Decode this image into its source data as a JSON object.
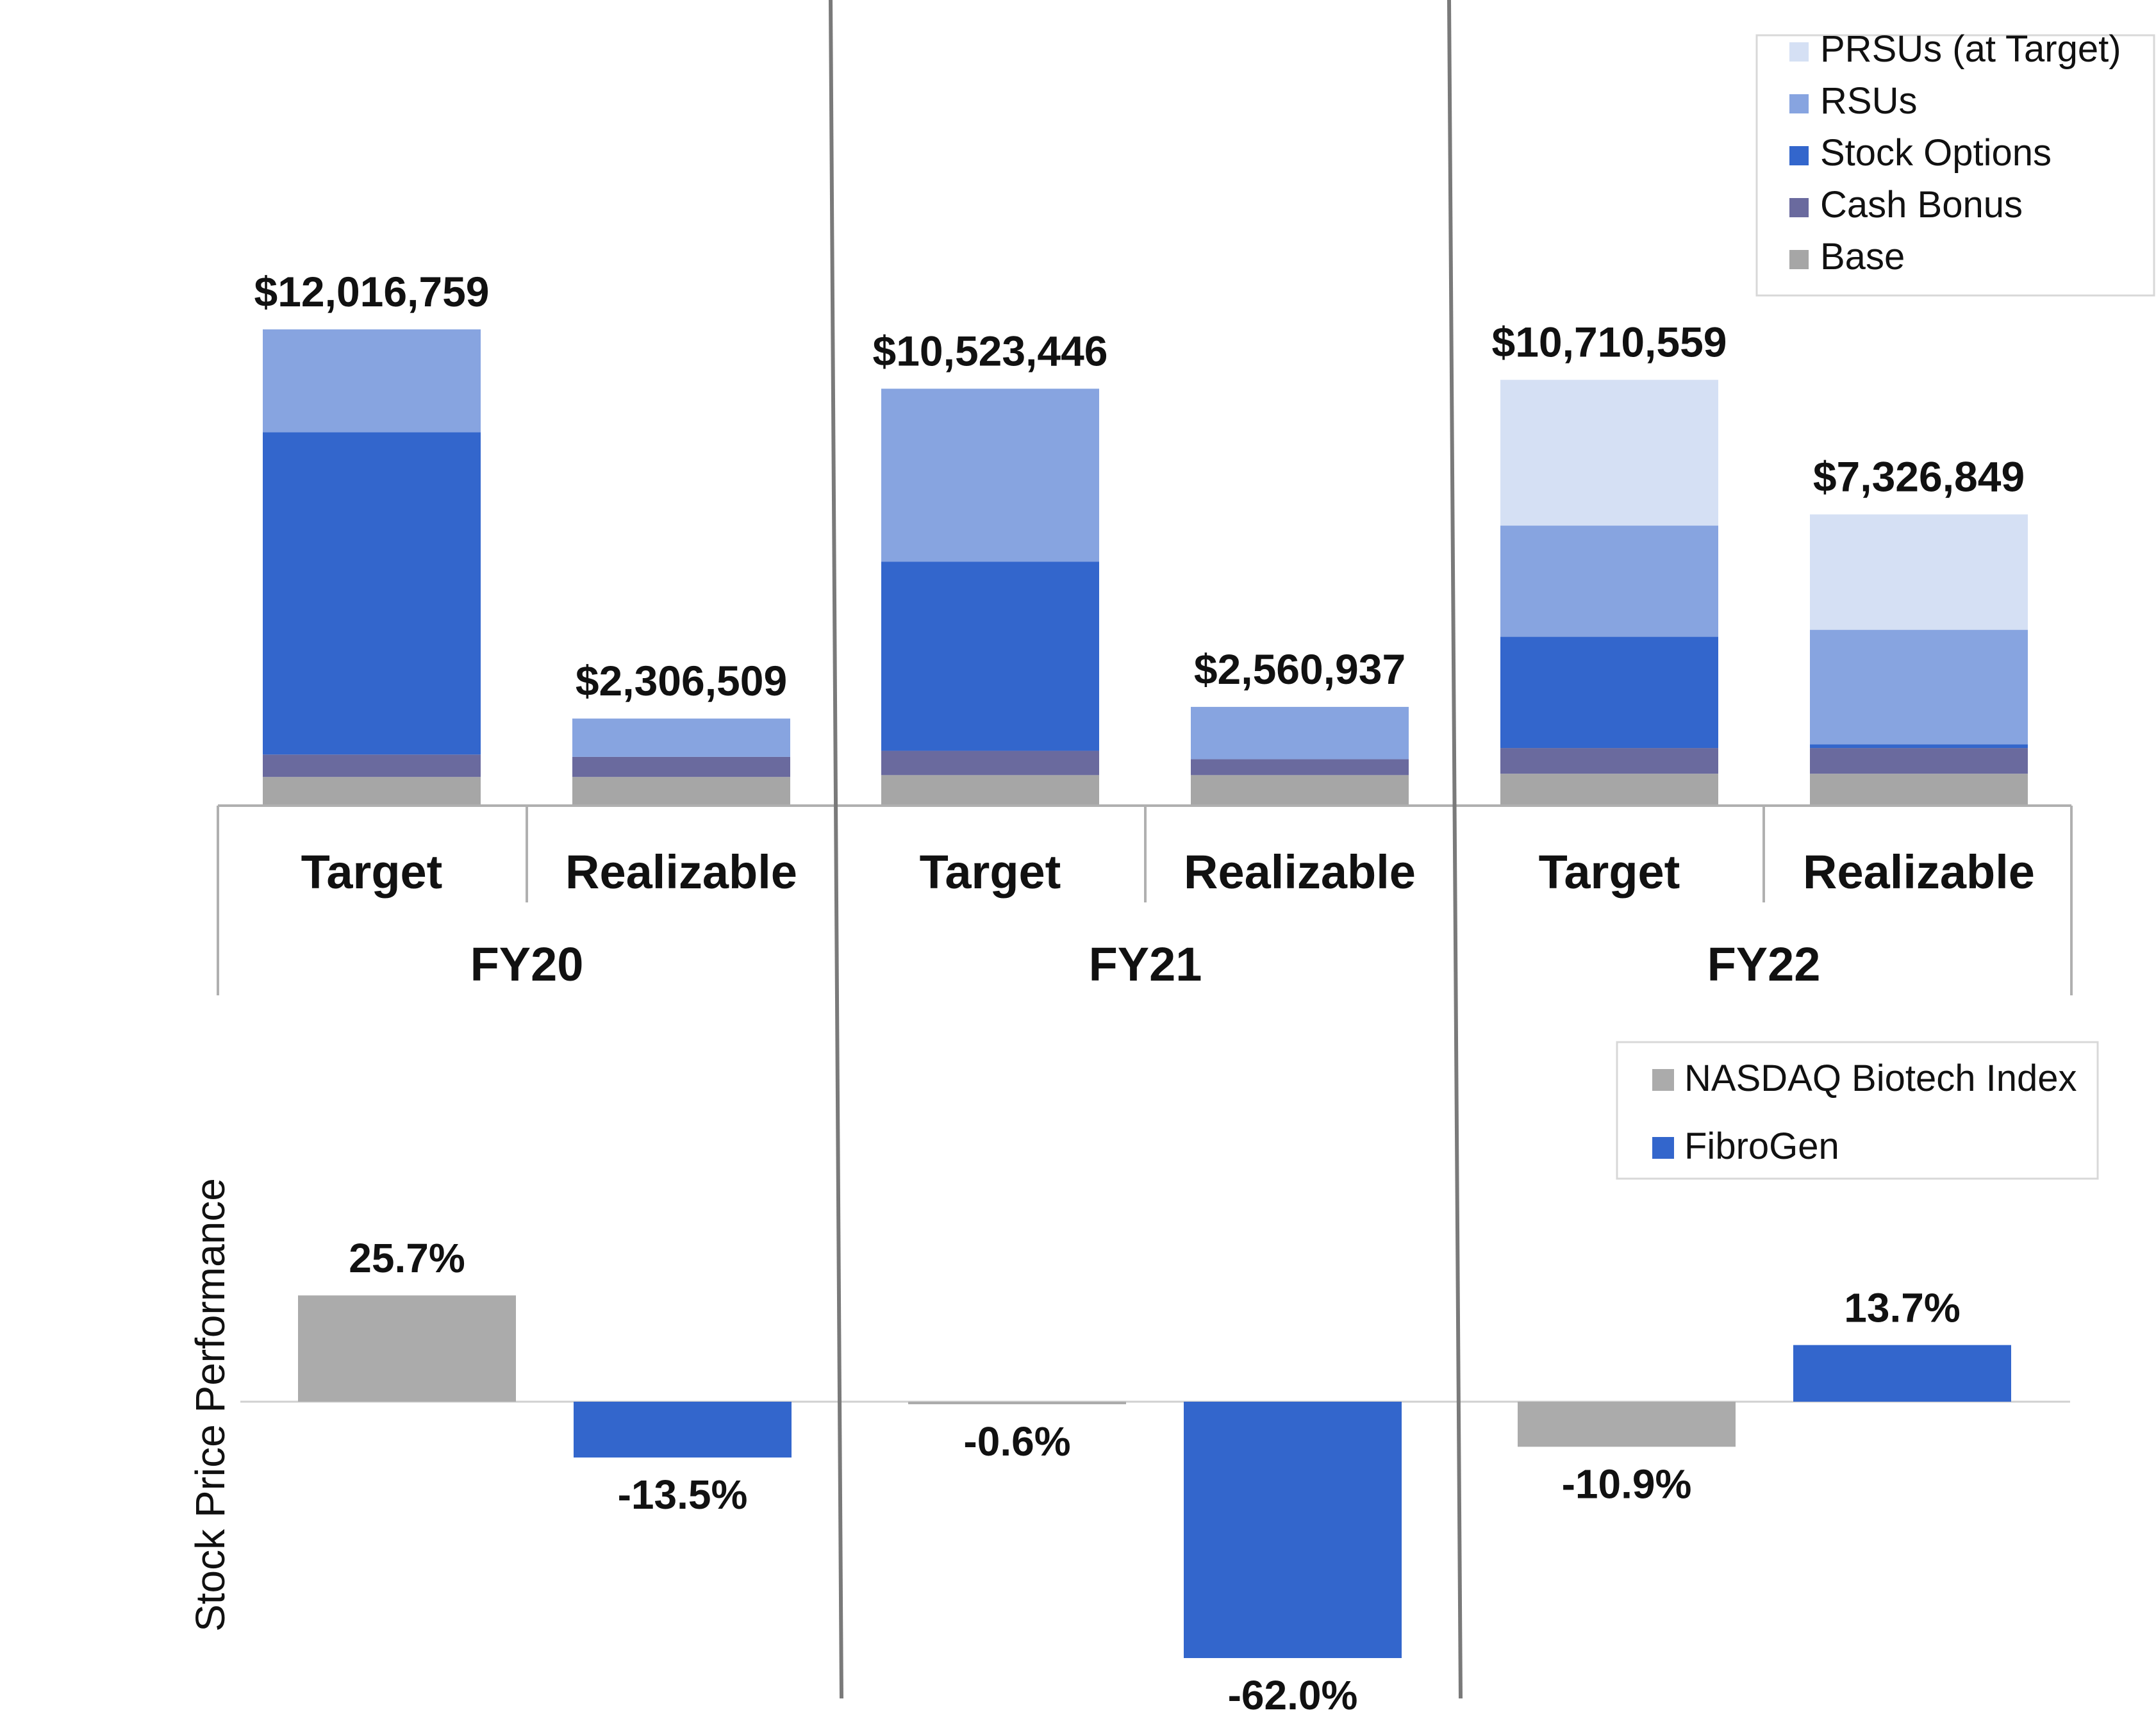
{
  "colors": {
    "prsus": "#d5e0f4",
    "rsus": "#87a4e0",
    "options": "#3366cc",
    "cash": "#6a6a9e",
    "base": "#a6a6a6",
    "nasdaq": "#ababab",
    "fibrogen": "#3366cc",
    "axis": "#b0b0b0",
    "divider": "#7a7a7a"
  },
  "chart_data": [
    {
      "type": "bar",
      "stacked": true,
      "title": "",
      "groups": [
        "FY20",
        "FY21",
        "FY22"
      ],
      "categories": [
        "Target",
        "Realizable"
      ],
      "bars": [
        {
          "group": "FY20",
          "category": "Target",
          "total_label": "$12,016,759",
          "segments": {
            "base": 600000,
            "cash": 480000,
            "options": 6900000,
            "rsus": 2200000,
            "prsus": 0
          }
        },
        {
          "group": "FY20",
          "category": "Realizable",
          "total_label": "$2,306,509",
          "segments": {
            "base": 600000,
            "cash": 430000,
            "options": 0,
            "rsus": 820000,
            "prsus": 0
          }
        },
        {
          "group": "FY21",
          "category": "Target",
          "total_label": "$10,523,446",
          "segments": {
            "base": 640000,
            "cash": 520000,
            "options": 4050000,
            "rsus": 3700000,
            "prsus": 0
          }
        },
        {
          "group": "FY21",
          "category": "Realizable",
          "total_label": "$2,560,937",
          "segments": {
            "base": 640000,
            "cash": 340000,
            "options": 0,
            "rsus": 1120000,
            "prsus": 0
          }
        },
        {
          "group": "FY22",
          "category": "Target",
          "total_label": "$10,710,559",
          "segments": {
            "base": 670000,
            "cash": 550000,
            "options": 2380000,
            "rsus": 2380000,
            "prsus": 3120000
          }
        },
        {
          "group": "FY22",
          "category": "Realizable",
          "total_label": "$7,326,849",
          "segments": {
            "base": 670000,
            "cash": 550000,
            "options": 80000,
            "rsus": 2450000,
            "prsus": 2470000
          }
        }
      ],
      "legend": [
        {
          "key": "prsus",
          "label": "PRSUs (at Target)"
        },
        {
          "key": "rsus",
          "label": "RSUs"
        },
        {
          "key": "options",
          "label": "Stock Options"
        },
        {
          "key": "cash",
          "label": "Cash Bonus"
        },
        {
          "key": "base",
          "label": "Base"
        }
      ],
      "legend_position": "top-right"
    },
    {
      "type": "bar",
      "title": "",
      "ylabel": "Stock Price Performance",
      "groups": [
        "FY20",
        "FY21",
        "FY22"
      ],
      "series": [
        {
          "name": "NASDAQ Biotech Index",
          "key": "nasdaq",
          "values": [
            25.7,
            -0.6,
            -10.9
          ],
          "labels": [
            "25.7%",
            "-0.6%",
            "-10.9%"
          ]
        },
        {
          "name": "FibroGen",
          "key": "fibrogen",
          "values": [
            -13.5,
            -62.0,
            13.7
          ],
          "labels": [
            "-13.5%",
            "-62.0%",
            "13.7%"
          ]
        }
      ],
      "legend_position": "top-right"
    }
  ]
}
